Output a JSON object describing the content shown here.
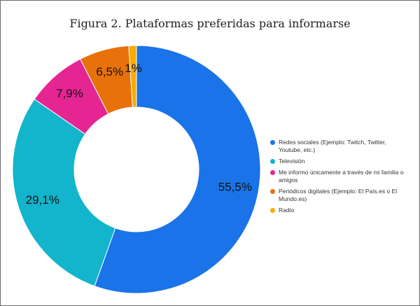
{
  "chart_data": {
    "type": "pie",
    "title": "Figura 2. Plataformas preferidas para informarse",
    "donut": true,
    "legend_position": "right",
    "slices": [
      {
        "label": "Redes sociales (Ejemplo: Twitch, Twitter, Youtube, etc.)",
        "value": 55.5,
        "display": "55,5%",
        "color": "#1a73e8"
      },
      {
        "label": "Televisión",
        "value": 29.1,
        "display": "29,1%",
        "color": "#12b5cb"
      },
      {
        "label": "Me informo únicamente a través de mi familia o amigos",
        "value": 7.9,
        "display": "7,9%",
        "color": "#e52592"
      },
      {
        "label": "Periódicos digitales (Ejemplo: El País.es o El Mundo.es)",
        "value": 6.5,
        "display": "6,5%",
        "color": "#e8710a"
      },
      {
        "label": "Radio",
        "value": 1.0,
        "display": "1%",
        "color": "#f9ab00"
      }
    ]
  }
}
